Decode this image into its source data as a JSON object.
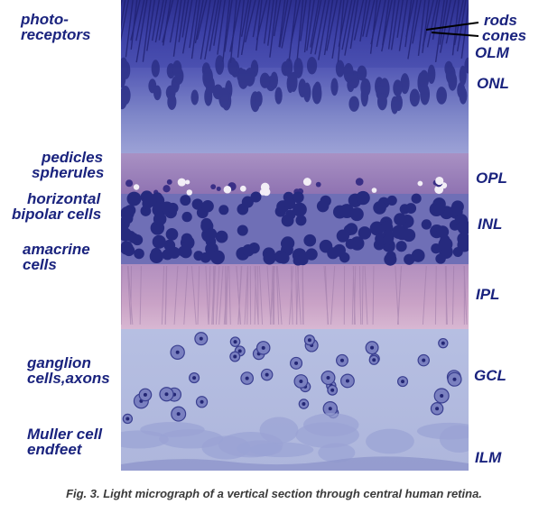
{
  "left_labels": {
    "photoreceptors": [
      "photo-",
      "receptors"
    ],
    "pedicles": "pedicles",
    "spherules": "spherules",
    "horizontal": "horizontal",
    "bipolar": "bipolar cells",
    "amacrine": [
      "amacrine",
      "cells"
    ],
    "ganglion": [
      "ganglion",
      "cells,axons"
    ],
    "muller": [
      "Muller cell",
      "endfeet"
    ]
  },
  "right_labels": {
    "rods": "rods",
    "cones": "cones",
    "olm": "OLM",
    "onl": "ONL",
    "opl": "OPL",
    "inl": "INL",
    "ipl": "IPL",
    "gcl": "GCL",
    "ilm": "ILM"
  },
  "caption": "Fig. 3. Light micrograph of a vertical section through central human retina.",
  "colors": {
    "label_color": "#1a237e",
    "caption_color": "#3a3a3a",
    "photoreceptor_layer": "#3b3f9e",
    "nuclear_layer": "#2b2f86",
    "plexiform_layer": "#a98ab8",
    "ganglion_layer": "#b5bde0"
  }
}
